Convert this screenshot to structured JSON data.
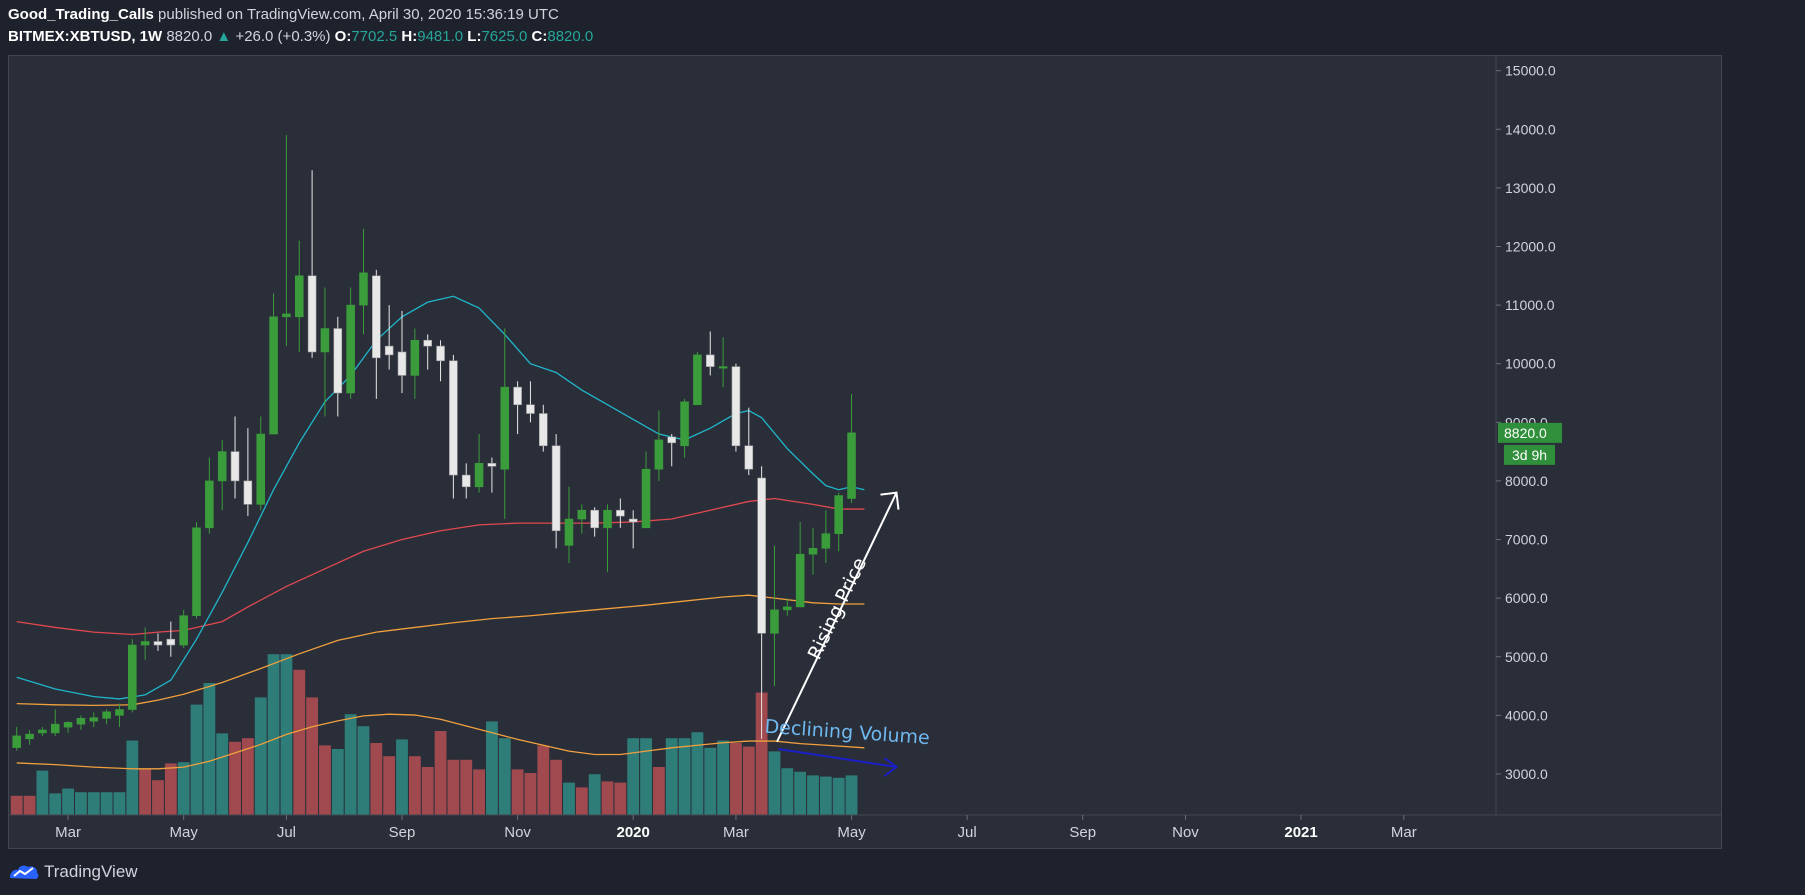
{
  "header": {
    "author": "Good_Trading_Calls",
    "published_text": "published on TradingView.com, April 30, 2020 15:36:19 UTC",
    "symbol": "BITMEX:XBTUSD, 1W",
    "last": "8820.0",
    "change_arrow": "▲",
    "change": "+26.0 (+0.3%)",
    "o_label": "O:",
    "o_value": "7702.5",
    "h_label": "H:",
    "h_value": "9481.0",
    "l_label": "L:",
    "l_value": "7625.0",
    "c_label": "C:",
    "c_value": "8820.0"
  },
  "footer": {
    "brand": "TradingView",
    "logo_icon": "tradingview-logo-icon"
  },
  "colors": {
    "background": "#2a2e39",
    "page": "#1e222d",
    "up_candle": "#3b9c3b",
    "down_candle": "#e8e8e8",
    "volume_up": "#2e7d79",
    "volume_down": "#a04a4f",
    "ma_fast": "#1fb6c9",
    "ma_mid": "#e2484f",
    "ma_slow": "#f0a03c",
    "annotation_white": "#ffffff",
    "annotation_blue": "#6fb8f0",
    "annotation_navy": "#1b1fc7",
    "price_badge": "#2f8f3a"
  },
  "chart_data": {
    "type": "candlestick",
    "title": "BITMEX:XBTUSD, 1W",
    "y_ticks": [
      3000,
      4000,
      5000,
      6000,
      7000,
      8000,
      9000,
      10000,
      11000,
      12000,
      13000,
      14000,
      15000
    ],
    "y_tick_labels": [
      "3000.0",
      "4000.0",
      "5000.0",
      "6000.0",
      "7000.0",
      "8000.0",
      "9000.0",
      "10000.0",
      "11000.0",
      "12000.0",
      "13000.0",
      "14000.0",
      "15000.0"
    ],
    "ylim": [
      2300,
      15250
    ],
    "x_ticks": [
      {
        "label": "Mar",
        "week": 4,
        "bold": false
      },
      {
        "label": "May",
        "week": 13,
        "bold": false
      },
      {
        "label": "Jul",
        "week": 21,
        "bold": false
      },
      {
        "label": "Sep",
        "week": 30,
        "bold": false
      },
      {
        "label": "Nov",
        "week": 39,
        "bold": false
      },
      {
        "label": "2020",
        "week": 48,
        "bold": true
      },
      {
        "label": "Mar",
        "week": 56,
        "bold": false
      },
      {
        "label": "May",
        "week": 65,
        "bold": false
      },
      {
        "label": "Jul",
        "week": 74,
        "bold": false
      },
      {
        "label": "Sep",
        "week": 83,
        "bold": false
      },
      {
        "label": "Nov",
        "week": 91,
        "bold": false
      },
      {
        "label": "2021",
        "week": 100,
        "bold": true
      },
      {
        "label": "Mar",
        "week": 108,
        "bold": false
      }
    ],
    "xlim": [
      -0.6,
      114.4
    ],
    "candles": [
      {
        "o": 3450,
        "h": 3800,
        "l": 3400,
        "c": 3650
      },
      {
        "o": 3600,
        "h": 3750,
        "l": 3500,
        "c": 3680
      },
      {
        "o": 3700,
        "h": 3800,
        "l": 3650,
        "c": 3750
      },
      {
        "o": 3700,
        "h": 4100,
        "l": 3650,
        "c": 3850
      },
      {
        "o": 3800,
        "h": 3900,
        "l": 3700,
        "c": 3880
      },
      {
        "o": 3850,
        "h": 4000,
        "l": 3750,
        "c": 3950
      },
      {
        "o": 3900,
        "h": 4050,
        "l": 3800,
        "c": 3960
      },
      {
        "o": 3950,
        "h": 4100,
        "l": 3850,
        "c": 4060
      },
      {
        "o": 4000,
        "h": 4200,
        "l": 3800,
        "c": 4100
      },
      {
        "o": 4100,
        "h": 5300,
        "l": 4050,
        "c": 5200
      },
      {
        "o": 5200,
        "h": 5500,
        "l": 4950,
        "c": 5260
      },
      {
        "o": 5260,
        "h": 5400,
        "l": 5100,
        "c": 5200
      },
      {
        "o": 5300,
        "h": 5600,
        "l": 5000,
        "c": 5200
      },
      {
        "o": 5200,
        "h": 5800,
        "l": 5150,
        "c": 5700
      },
      {
        "o": 5700,
        "h": 7300,
        "l": 5650,
        "c": 7200
      },
      {
        "o": 7200,
        "h": 8400,
        "l": 7100,
        "c": 8000
      },
      {
        "o": 8000,
        "h": 8700,
        "l": 7500,
        "c": 8500
      },
      {
        "o": 8500,
        "h": 9100,
        "l": 7700,
        "c": 8000
      },
      {
        "o": 8000,
        "h": 8900,
        "l": 7400,
        "c": 7600
      },
      {
        "o": 7600,
        "h": 9100,
        "l": 7500,
        "c": 8800
      },
      {
        "o": 8800,
        "h": 11200,
        "l": 8800,
        "c": 10800
      },
      {
        "o": 10800,
        "h": 13900,
        "l": 10300,
        "c": 10850
      },
      {
        "o": 10800,
        "h": 12100,
        "l": 10200,
        "c": 11500
      },
      {
        "o": 11500,
        "h": 13300,
        "l": 10100,
        "c": 10200
      },
      {
        "o": 10200,
        "h": 11300,
        "l": 9100,
        "c": 10600
      },
      {
        "o": 10600,
        "h": 10800,
        "l": 9100,
        "c": 9500
      },
      {
        "o": 9500,
        "h": 11300,
        "l": 9400,
        "c": 11000
      },
      {
        "o": 11000,
        "h": 12300,
        "l": 10500,
        "c": 11550
      },
      {
        "o": 11500,
        "h": 11600,
        "l": 9400,
        "c": 10100
      },
      {
        "o": 10300,
        "h": 11000,
        "l": 9900,
        "c": 10150
      },
      {
        "o": 10200,
        "h": 10900,
        "l": 9500,
        "c": 9800
      },
      {
        "o": 9800,
        "h": 10600,
        "l": 9400,
        "c": 10400
      },
      {
        "o": 10400,
        "h": 10500,
        "l": 9900,
        "c": 10300
      },
      {
        "o": 10300,
        "h": 10400,
        "l": 9700,
        "c": 10050
      },
      {
        "o": 10050,
        "h": 10150,
        "l": 7700,
        "c": 8100
      },
      {
        "o": 8100,
        "h": 8300,
        "l": 7700,
        "c": 7900
      },
      {
        "o": 7900,
        "h": 8800,
        "l": 7800,
        "c": 8300
      },
      {
        "o": 8300,
        "h": 8400,
        "l": 7800,
        "c": 8250
      },
      {
        "o": 8200,
        "h": 10600,
        "l": 7350,
        "c": 9600
      },
      {
        "o": 9600,
        "h": 9700,
        "l": 8800,
        "c": 9300
      },
      {
        "o": 9300,
        "h": 9700,
        "l": 9000,
        "c": 9150
      },
      {
        "o": 9150,
        "h": 9300,
        "l": 8500,
        "c": 8600
      },
      {
        "o": 8600,
        "h": 8800,
        "l": 6850,
        "c": 7150
      },
      {
        "o": 6900,
        "h": 7900,
        "l": 6600,
        "c": 7350
      },
      {
        "o": 7350,
        "h": 7600,
        "l": 7100,
        "c": 7500
      },
      {
        "o": 7500,
        "h": 7550,
        "l": 7050,
        "c": 7200
      },
      {
        "o": 7200,
        "h": 7600,
        "l": 6450,
        "c": 7500
      },
      {
        "o": 7500,
        "h": 7700,
        "l": 7200,
        "c": 7400
      },
      {
        "o": 7350,
        "h": 7500,
        "l": 6850,
        "c": 7300
      },
      {
        "o": 7200,
        "h": 8500,
        "l": 7200,
        "c": 8200
      },
      {
        "o": 8200,
        "h": 9200,
        "l": 8000,
        "c": 8700
      },
      {
        "o": 8750,
        "h": 8800,
        "l": 8250,
        "c": 8650
      },
      {
        "o": 8600,
        "h": 9400,
        "l": 8400,
        "c": 9350
      },
      {
        "o": 9300,
        "h": 10200,
        "l": 9300,
        "c": 10150
      },
      {
        "o": 10150,
        "h": 10550,
        "l": 9800,
        "c": 9950
      },
      {
        "o": 9950,
        "h": 10450,
        "l": 9600,
        "c": 9950
      },
      {
        "o": 9950,
        "h": 10000,
        "l": 8500,
        "c": 8600
      },
      {
        "o": 8600,
        "h": 9250,
        "l": 8100,
        "c": 8200
      },
      {
        "o": 8050,
        "h": 8250,
        "l": 3600,
        "c": 5400
      },
      {
        "o": 5400,
        "h": 6900,
        "l": 4500,
        "c": 5800
      },
      {
        "o": 5800,
        "h": 6000,
        "l": 5700,
        "c": 5850
      },
      {
        "o": 5850,
        "h": 7300,
        "l": 5850,
        "c": 6750
      },
      {
        "o": 6750,
        "h": 7200,
        "l": 6400,
        "c": 6850
      },
      {
        "o": 6850,
        "h": 7500,
        "l": 6600,
        "c": 7100
      },
      {
        "o": 7100,
        "h": 7800,
        "l": 6800,
        "c": 7750
      },
      {
        "o": 7700,
        "h": 9480,
        "l": 7625,
        "c": 8820
      }
    ],
    "volume": [
      {
        "v": 0.16,
        "up": false
      },
      {
        "v": 0.16,
        "up": false
      },
      {
        "v": 0.37,
        "up": true
      },
      {
        "v": 0.18,
        "up": true
      },
      {
        "v": 0.22,
        "up": true
      },
      {
        "v": 0.19,
        "up": true
      },
      {
        "v": 0.19,
        "up": true
      },
      {
        "v": 0.19,
        "up": true
      },
      {
        "v": 0.19,
        "up": true
      },
      {
        "v": 0.62,
        "up": true
      },
      {
        "v": 0.38,
        "up": false
      },
      {
        "v": 0.29,
        "up": false
      },
      {
        "v": 0.43,
        "up": false
      },
      {
        "v": 0.44,
        "up": true
      },
      {
        "v": 0.92,
        "up": true
      },
      {
        "v": 1.1,
        "up": true
      },
      {
        "v": 0.68,
        "up": true
      },
      {
        "v": 0.61,
        "up": false
      },
      {
        "v": 0.64,
        "up": false
      },
      {
        "v": 0.98,
        "up": true
      },
      {
        "v": 1.34,
        "up": true
      },
      {
        "v": 1.34,
        "up": true
      },
      {
        "v": 1.21,
        "up": false
      },
      {
        "v": 0.98,
        "up": false
      },
      {
        "v": 0.58,
        "up": false
      },
      {
        "v": 0.55,
        "up": true
      },
      {
        "v": 0.84,
        "up": true
      },
      {
        "v": 0.74,
        "up": true
      },
      {
        "v": 0.6,
        "up": false
      },
      {
        "v": 0.49,
        "up": false
      },
      {
        "v": 0.63,
        "up": true
      },
      {
        "v": 0.49,
        "up": false
      },
      {
        "v": 0.4,
        "up": false
      },
      {
        "v": 0.7,
        "up": false
      },
      {
        "v": 0.46,
        "up": false
      },
      {
        "v": 0.46,
        "up": false
      },
      {
        "v": 0.38,
        "up": false
      },
      {
        "v": 0.78,
        "up": true
      },
      {
        "v": 0.64,
        "up": true
      },
      {
        "v": 0.38,
        "up": false
      },
      {
        "v": 0.35,
        "up": false
      },
      {
        "v": 0.58,
        "up": false
      },
      {
        "v": 0.46,
        "up": false
      },
      {
        "v": 0.27,
        "up": true
      },
      {
        "v": 0.23,
        "up": false
      },
      {
        "v": 0.34,
        "up": true
      },
      {
        "v": 0.28,
        "up": false
      },
      {
        "v": 0.27,
        "up": false
      },
      {
        "v": 0.64,
        "up": true
      },
      {
        "v": 0.64,
        "up": true
      },
      {
        "v": 0.4,
        "up": false
      },
      {
        "v": 0.64,
        "up": true
      },
      {
        "v": 0.64,
        "up": true
      },
      {
        "v": 0.69,
        "up": true
      },
      {
        "v": 0.56,
        "up": true
      },
      {
        "v": 0.62,
        "up": true
      },
      {
        "v": 0.6,
        "up": false
      },
      {
        "v": 0.57,
        "up": false
      },
      {
        "v": 1.02,
        "up": false
      },
      {
        "v": 0.53,
        "up": true
      },
      {
        "v": 0.39,
        "up": true
      },
      {
        "v": 0.36,
        "up": true
      },
      {
        "v": 0.33,
        "up": true
      },
      {
        "v": 0.32,
        "up": true
      },
      {
        "v": 0.31,
        "up": true
      },
      {
        "v": 0.33,
        "up": true
      }
    ],
    "ma_fast": [
      [
        0,
        4650
      ],
      [
        3,
        4450
      ],
      [
        6,
        4320
      ],
      [
        8,
        4280
      ],
      [
        10,
        4350
      ],
      [
        12,
        4600
      ],
      [
        14,
        5300
      ],
      [
        16,
        6100
      ],
      [
        18,
        6950
      ],
      [
        20,
        7850
      ],
      [
        22,
        8650
      ],
      [
        24,
        9350
      ],
      [
        26,
        9800
      ],
      [
        28,
        10400
      ],
      [
        30,
        10800
      ],
      [
        32,
        11050
      ],
      [
        34,
        11150
      ],
      [
        36,
        10950
      ],
      [
        38,
        10500
      ],
      [
        40,
        10000
      ],
      [
        42,
        9850
      ],
      [
        44,
        9550
      ],
      [
        46,
        9300
      ],
      [
        48,
        9050
      ],
      [
        50,
        8800
      ],
      [
        52,
        8700
      ],
      [
        54,
        8900
      ],
      [
        56,
        9150
      ],
      [
        57,
        9200
      ],
      [
        58,
        9080
      ],
      [
        60,
        8550
      ],
      [
        62,
        8120
      ],
      [
        63,
        7920
      ],
      [
        64,
        7850
      ],
      [
        65,
        7900
      ],
      [
        66,
        7850
      ]
    ],
    "ma_mid": [
      [
        0,
        5600
      ],
      [
        3,
        5500
      ],
      [
        6,
        5420
      ],
      [
        9,
        5380
      ],
      [
        11,
        5420
      ],
      [
        13,
        5450
      ],
      [
        16,
        5600
      ],
      [
        18,
        5850
      ],
      [
        21,
        6200
      ],
      [
        24,
        6500
      ],
      [
        27,
        6800
      ],
      [
        30,
        7000
      ],
      [
        33,
        7150
      ],
      [
        36,
        7250
      ],
      [
        39,
        7280
      ],
      [
        42,
        7280
      ],
      [
        45,
        7280
      ],
      [
        48,
        7300
      ],
      [
        51,
        7350
      ],
      [
        54,
        7500
      ],
      [
        57,
        7650
      ],
      [
        59,
        7700
      ],
      [
        62,
        7600
      ],
      [
        64,
        7520
      ],
      [
        66,
        7520
      ]
    ],
    "ma_slow": [
      [
        0,
        4200
      ],
      [
        3,
        4180
      ],
      [
        6,
        4170
      ],
      [
        9,
        4180
      ],
      [
        11,
        4260
      ],
      [
        13,
        4360
      ],
      [
        16,
        4560
      ],
      [
        19,
        4800
      ],
      [
        22,
        5050
      ],
      [
        25,
        5280
      ],
      [
        28,
        5420
      ],
      [
        31,
        5500
      ],
      [
        34,
        5580
      ],
      [
        37,
        5650
      ],
      [
        40,
        5700
      ],
      [
        43,
        5760
      ],
      [
        46,
        5820
      ],
      [
        49,
        5880
      ],
      [
        52,
        5950
      ],
      [
        55,
        6020
      ],
      [
        57,
        6050
      ],
      [
        59,
        6000
      ],
      [
        62,
        5920
      ],
      [
        64,
        5900
      ],
      [
        66,
        5900
      ]
    ],
    "vol_ma": [
      [
        0,
        0.62
      ],
      [
        3,
        0.6
      ],
      [
        6,
        0.57
      ],
      [
        9,
        0.55
      ],
      [
        11,
        0.55
      ],
      [
        13,
        0.57
      ],
      [
        15,
        0.64
      ],
      [
        17,
        0.74
      ],
      [
        19,
        0.84
      ],
      [
        21,
        0.96
      ],
      [
        23,
        1.05
      ],
      [
        25,
        1.12
      ],
      [
        27,
        1.18
      ],
      [
        29,
        1.2
      ],
      [
        31,
        1.19
      ],
      [
        33,
        1.14
      ],
      [
        35,
        1.06
      ],
      [
        37,
        0.98
      ],
      [
        39,
        0.9
      ],
      [
        41,
        0.83
      ],
      [
        43,
        0.76
      ],
      [
        45,
        0.72
      ],
      [
        47,
        0.72
      ],
      [
        49,
        0.76
      ],
      [
        51,
        0.8
      ],
      [
        53,
        0.83
      ],
      [
        55,
        0.86
      ],
      [
        57,
        0.88
      ],
      [
        59,
        0.88
      ],
      [
        61,
        0.85
      ],
      [
        63,
        0.83
      ],
      [
        66,
        0.8
      ]
    ],
    "price_label": "8820.0",
    "countdown_label": "3d 9h",
    "annotations": [
      {
        "text": "Rising Price",
        "color": "#ffffff"
      },
      {
        "text": "Declining Volume",
        "color": "#6fb8f0"
      }
    ]
  }
}
